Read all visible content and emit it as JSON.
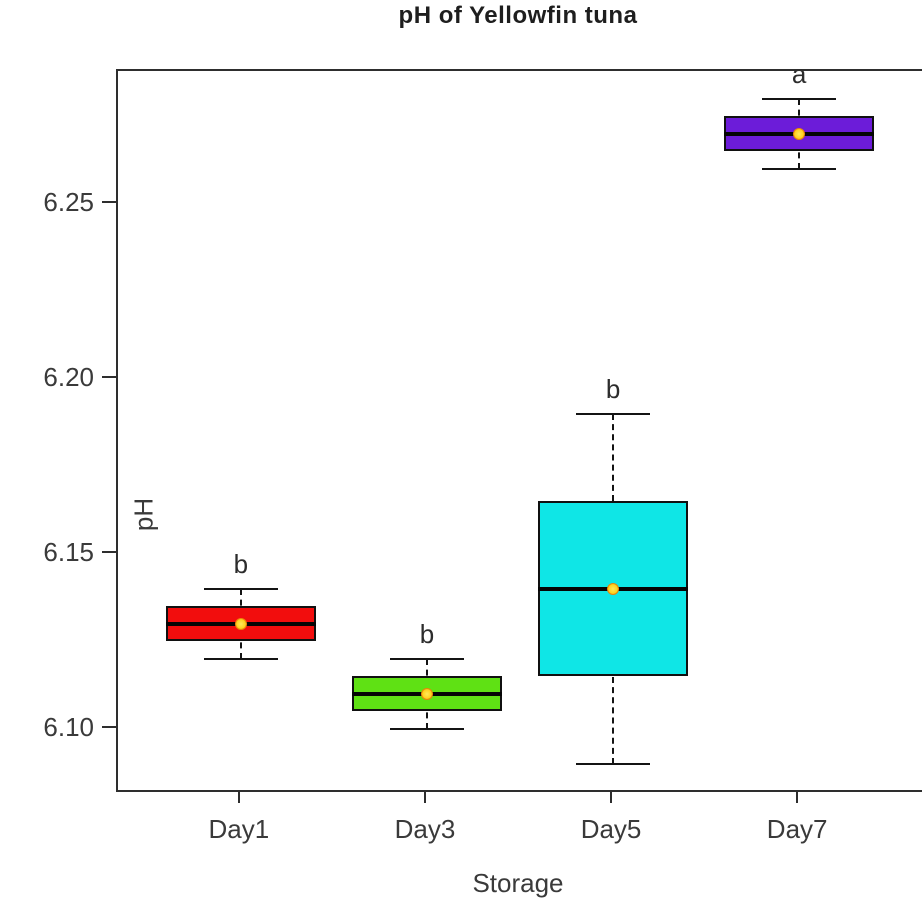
{
  "chart_data": {
    "type": "boxplot",
    "title": "pH of Yellowfin tuna",
    "xlabel": "Storage",
    "ylabel": "pH",
    "categories": [
      "Day1",
      "Day3",
      "Day5",
      "Day7"
    ],
    "ylim": [
      6.0825,
      6.2879
    ],
    "yticks": {
      "values": [
        6.1,
        6.15,
        6.2,
        6.25
      ],
      "labels": [
        "6.10",
        "6.15",
        "6.20",
        "6.25"
      ]
    },
    "grid": false,
    "legend": null,
    "frame_color": "#2e2e2e",
    "text_color": "#3a3a3a",
    "mean_point": {
      "fill": "#FFD21E",
      "fill_center": "#FFE95A",
      "border": "#E8860A"
    },
    "series": [
      {
        "category": "Day1",
        "box_color": "#F20D0D",
        "sig_letter": "b",
        "whisker_low": 6.12,
        "q1": 6.125,
        "median": 6.13,
        "q3": 6.135,
        "whisker_high": 6.14,
        "mean": 6.13
      },
      {
        "category": "Day3",
        "box_color": "#5FE114",
        "sig_letter": "b",
        "whisker_low": 6.1,
        "q1": 6.105,
        "median": 6.11,
        "q3": 6.115,
        "whisker_high": 6.12,
        "mean": 6.11
      },
      {
        "category": "Day5",
        "box_color": "#0FE6E6",
        "sig_letter": "b",
        "whisker_low": 6.09,
        "q1": 6.115,
        "median": 6.14,
        "q3": 6.165,
        "whisker_high": 6.19,
        "mean": 6.14
      },
      {
        "category": "Day7",
        "box_color": "#6C1CD9",
        "sig_letter": "a",
        "whisker_low": 6.26,
        "q1": 6.265,
        "median": 6.27,
        "q3": 6.275,
        "whisker_high": 6.28,
        "mean": 6.27
      }
    ]
  }
}
